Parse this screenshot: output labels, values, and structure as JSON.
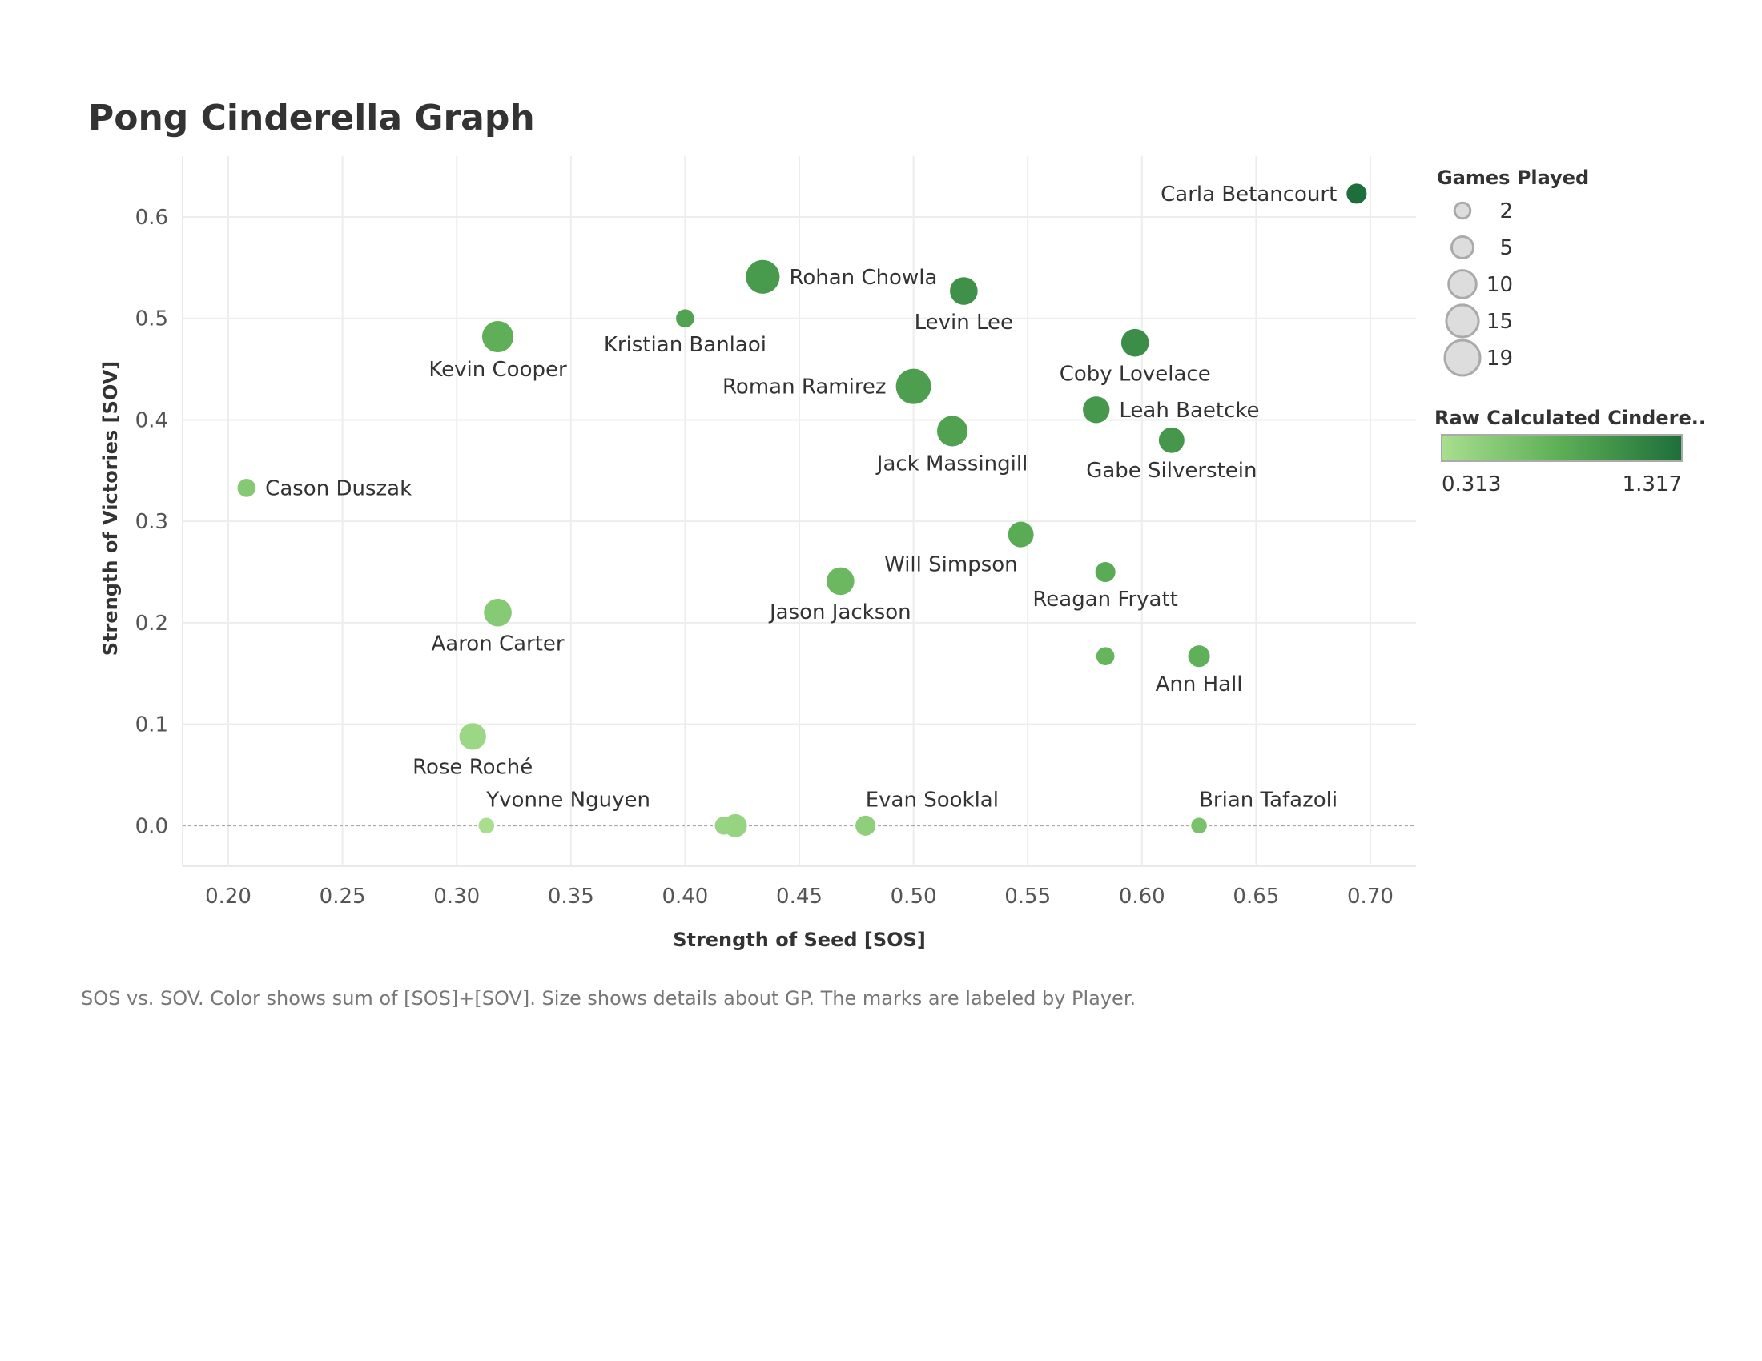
{
  "chart_data": {
    "type": "scatter",
    "title": "Pong Cinderella Graph",
    "xlabel": "Strength of Seed [SOS]",
    "ylabel": "Strength of Victories [SOV]",
    "xlim": [
      0.18,
      0.72
    ],
    "ylim": [
      -0.04,
      0.66
    ],
    "xticks": [
      0.2,
      0.25,
      0.3,
      0.35,
      0.4,
      0.45,
      0.5,
      0.55,
      0.6,
      0.65,
      0.7
    ],
    "xtick_labels": [
      "0.20",
      "0.25",
      "0.30",
      "0.35",
      "0.40",
      "0.45",
      "0.50",
      "0.55",
      "0.60",
      "0.65",
      "0.70"
    ],
    "yticks": [
      0.0,
      0.1,
      0.2,
      0.3,
      0.4,
      0.5,
      0.6
    ],
    "ytick_labels": [
      "0.0",
      "0.1",
      "0.2",
      "0.3",
      "0.4",
      "0.5",
      "0.6"
    ],
    "grid": true,
    "points": [
      {
        "label": "Carla Betancourt",
        "x": 0.694,
        "y": 0.623,
        "gp": 4,
        "color": 1.317,
        "label_pos": "left"
      },
      {
        "label": "Rohan Chowla",
        "x": 0.434,
        "y": 0.541,
        "gp": 17,
        "color": 0.975,
        "label_pos": "right"
      },
      {
        "label": "Levin Lee",
        "x": 0.522,
        "y": 0.527,
        "gp": 10,
        "color": 1.049,
        "label_pos": "below"
      },
      {
        "label": "Kristian Banlaoi",
        "x": 0.4,
        "y": 0.5,
        "gp": 3,
        "color": 0.9,
        "label_pos": "below"
      },
      {
        "label": "Kevin Cooper",
        "x": 0.318,
        "y": 0.482,
        "gp": 14,
        "color": 0.8,
        "label_pos": "below"
      },
      {
        "label": "Coby Lovelace",
        "x": 0.597,
        "y": 0.476,
        "gp": 10,
        "color": 1.073,
        "label_pos": "below"
      },
      {
        "label": "Roman Ramirez",
        "x": 0.5,
        "y": 0.433,
        "gp": 19,
        "color": 0.933,
        "label_pos": "left"
      },
      {
        "label": "Leah Baetcke",
        "x": 0.58,
        "y": 0.41,
        "gp": 9,
        "color": 0.99,
        "label_pos": "right"
      },
      {
        "label": "Jack Massingill",
        "x": 0.517,
        "y": 0.389,
        "gp": 13,
        "color": 0.906,
        "label_pos": "below"
      },
      {
        "label": "Gabe Silverstein",
        "x": 0.613,
        "y": 0.38,
        "gp": 8,
        "color": 0.993,
        "label_pos": "below"
      },
      {
        "label": "Cason Duszak",
        "x": 0.208,
        "y": 0.333,
        "gp": 3,
        "color": 0.541,
        "label_pos": "right"
      },
      {
        "label": "Will Simpson",
        "x": 0.547,
        "y": 0.287,
        "gp": 8,
        "color": 0.834,
        "label_pos": "below-left"
      },
      {
        "label": "Reagan Fryatt",
        "x": 0.584,
        "y": 0.25,
        "gp": 4,
        "color": 0.834,
        "label_pos": "below"
      },
      {
        "label": "Jason Jackson",
        "x": 0.468,
        "y": 0.241,
        "gp": 10,
        "color": 0.709,
        "label_pos": "below"
      },
      {
        "label": "Aaron Carter",
        "x": 0.318,
        "y": 0.21,
        "gp": 10,
        "color": 0.528,
        "label_pos": "below"
      },
      {
        "label": "",
        "x": 0.584,
        "y": 0.167,
        "gp": 3,
        "color": 0.751,
        "label_pos": "none"
      },
      {
        "label": "Ann Hall",
        "x": 0.625,
        "y": 0.167,
        "gp": 5,
        "color": 0.792,
        "label_pos": "below"
      },
      {
        "label": "Rose Roché",
        "x": 0.307,
        "y": 0.088,
        "gp": 9,
        "color": 0.395,
        "label_pos": "below"
      },
      {
        "label": "Yvonne Nguyen",
        "x": 0.313,
        "y": 0.0,
        "gp": 2,
        "color": 0.313,
        "label_pos": "above-right"
      },
      {
        "label": "",
        "x": 0.417,
        "y": 0.0,
        "gp": 3,
        "color": 0.417,
        "label_pos": "none"
      },
      {
        "label": "",
        "x": 0.422,
        "y": 0.0,
        "gp": 6,
        "color": 0.422,
        "label_pos": "none"
      },
      {
        "label": "Evan Sooklal",
        "x": 0.479,
        "y": 0.0,
        "gp": 4,
        "color": 0.479,
        "label_pos": "above-right"
      },
      {
        "label": "Brian Tafazoli",
        "x": 0.625,
        "y": 0.0,
        "gp": 2,
        "color": 0.625,
        "label_pos": "above-right"
      }
    ],
    "legend_size": {
      "title": "Games Played",
      "items": [
        {
          "label": "2",
          "gp": 2
        },
        {
          "label": "5",
          "gp": 5
        },
        {
          "label": "10",
          "gp": 10
        },
        {
          "label": "15",
          "gp": 15
        },
        {
          "label": "19",
          "gp": 19
        }
      ]
    },
    "legend_color": {
      "title": "Raw Calculated Cindere..",
      "min_label": "0.313",
      "max_label": "1.317",
      "min": 0.313,
      "max": 1.317,
      "color_low": "#a8df8e",
      "color_mid": "#5cae55",
      "color_high": "#1e6e3b"
    },
    "caption": "SOS vs. SOV.  Color shows sum of [SOS]+[SOV].  Size shows details about GP.  The marks are labeled by Player."
  }
}
